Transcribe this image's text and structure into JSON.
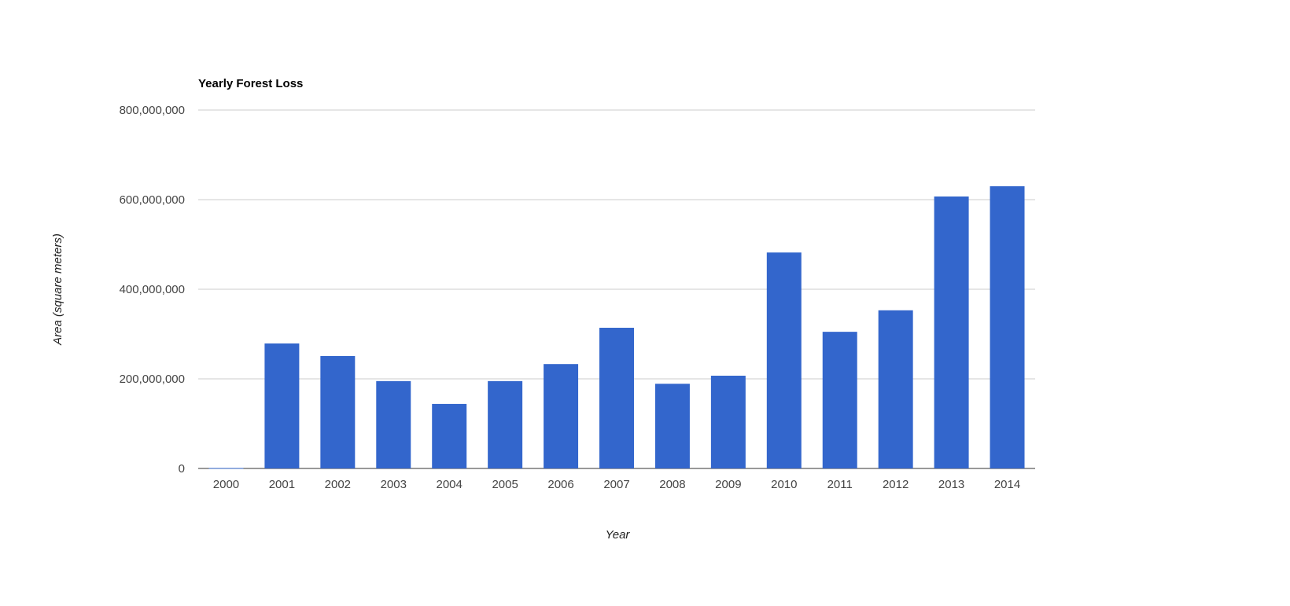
{
  "chart_data": {
    "type": "bar",
    "title": "Yearly Forest Loss",
    "xlabel": "Year",
    "ylabel": "Area (square meters)",
    "categories": [
      "2000",
      "2001",
      "2002",
      "2003",
      "2004",
      "2005",
      "2006",
      "2007",
      "2008",
      "2009",
      "2010",
      "2011",
      "2012",
      "2013",
      "2014"
    ],
    "values": [
      1000000,
      279000000,
      251000000,
      195000000,
      144000000,
      195000000,
      233000000,
      314000000,
      189000000,
      207000000,
      482000000,
      305000000,
      353000000,
      607000000,
      630000000
    ],
    "ylim": [
      0,
      800000000
    ],
    "yticks": [
      0,
      200000000,
      400000000,
      600000000,
      800000000
    ],
    "ytick_labels": [
      "0",
      "200,000,000",
      "400,000,000",
      "600,000,000",
      "800,000,000"
    ],
    "grid": true,
    "legend": "none",
    "bar_color": "#3366cc"
  }
}
